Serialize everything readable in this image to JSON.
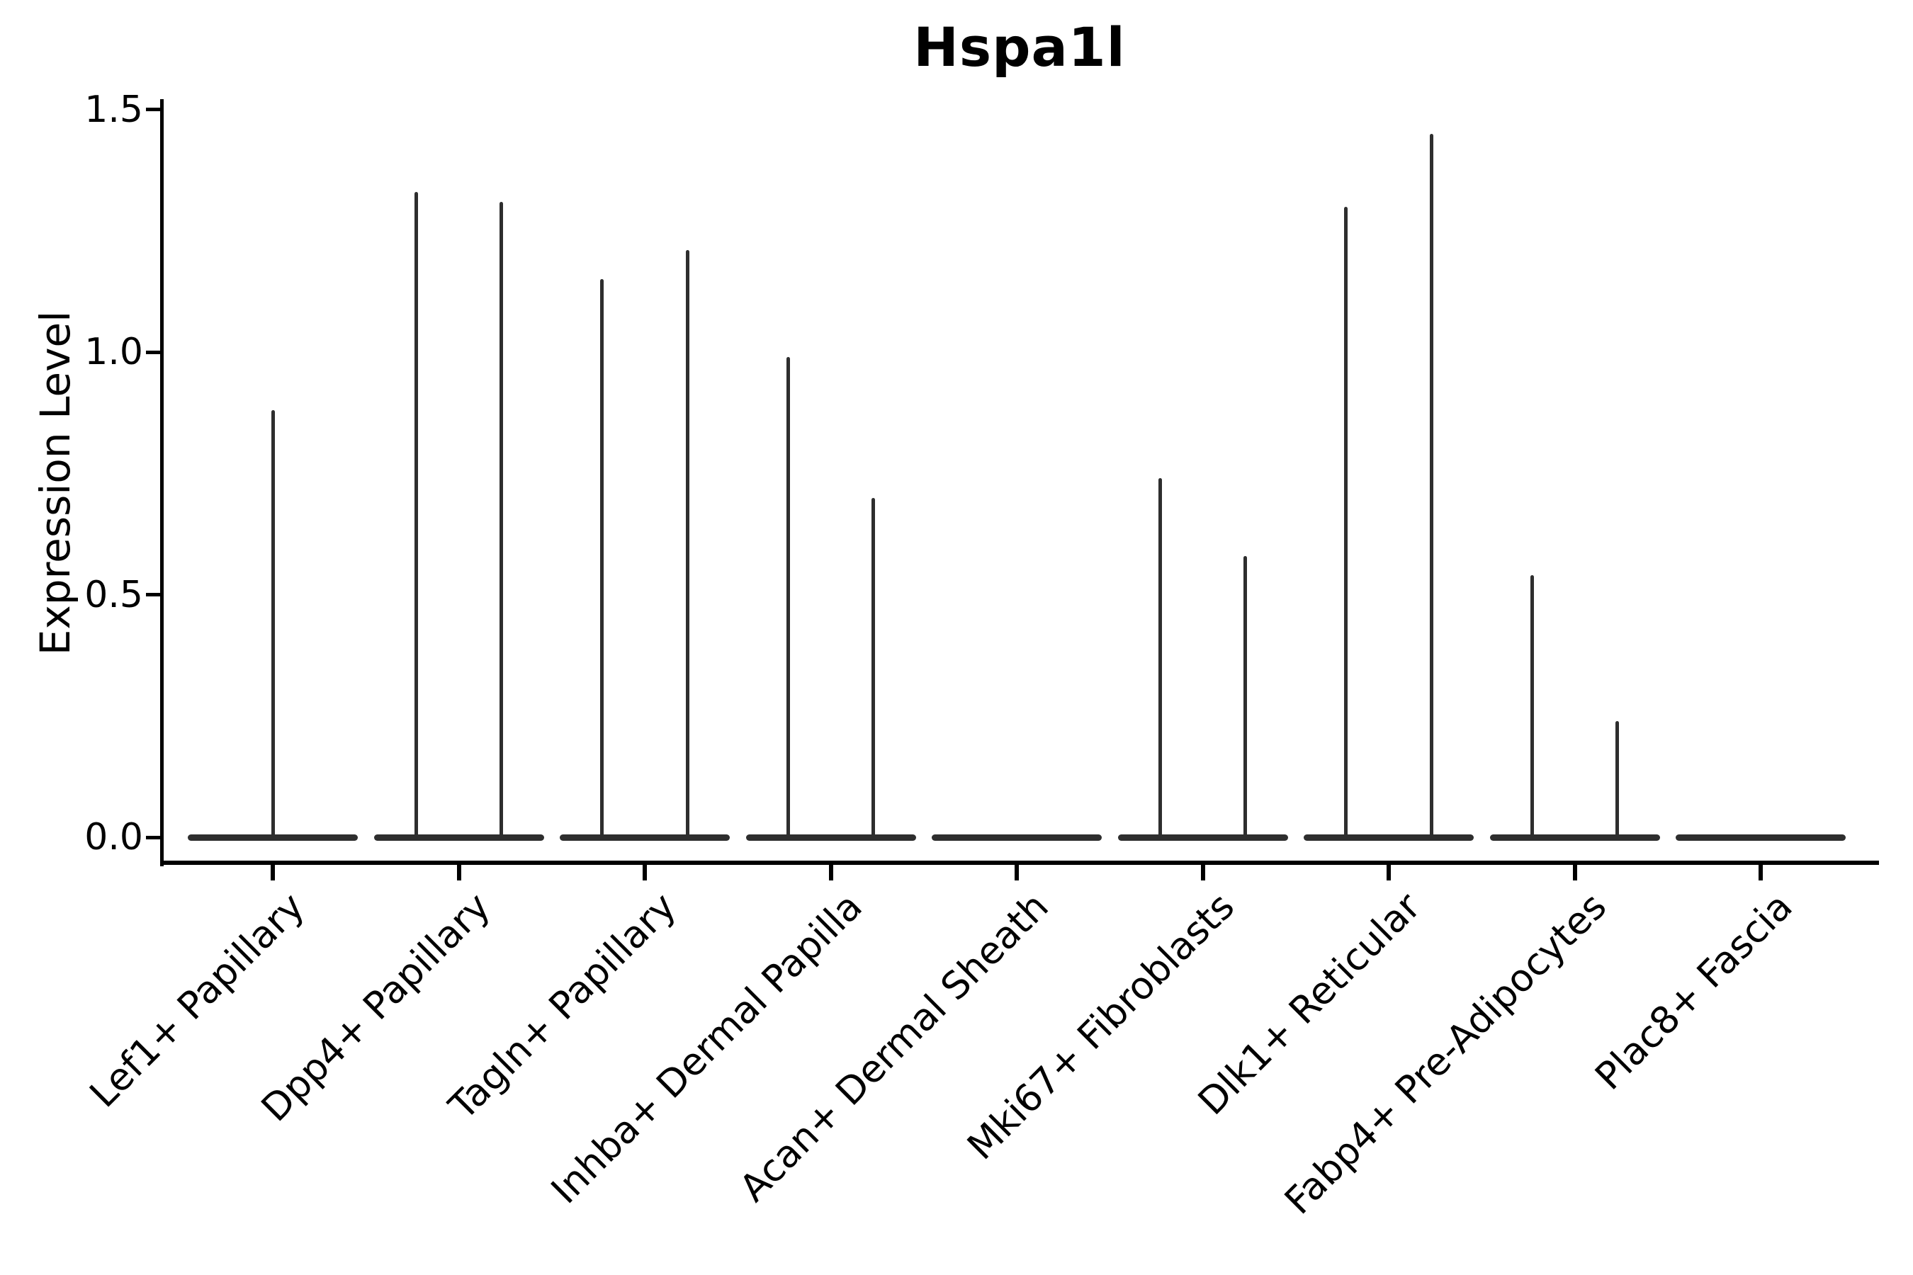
{
  "title": "Hspa1l",
  "y_axis": {
    "label": "Expression Level",
    "ticks": [
      {
        "label": "0.0",
        "value": 0.0
      },
      {
        "label": "0.5",
        "value": 0.5
      },
      {
        "label": "1.0",
        "value": 1.0
      },
      {
        "label": "1.5",
        "value": 1.5
      }
    ]
  },
  "chart_data": {
    "type": "violin",
    "title": "Hspa1l",
    "xlabel": "",
    "ylabel": "Expression Level",
    "ylim": [
      0,
      1.5
    ],
    "grid": false,
    "legend": false,
    "baseline_value": 0.0,
    "categories": [
      "Lef1+ Papillary",
      "Dpp4+ Papillary",
      "Tagln+ Papillary",
      "Inhba+ Dermal Papilla",
      "Acan+ Dermal Sheath",
      "Mki67+ Fibroblasts",
      "Dlk1+ Reticular",
      "Fabp4+ Pre-Adipocytes",
      "Plac8+ Fascia"
    ],
    "series": [
      {
        "category": "Lef1+ Papillary",
        "spikes": [
          {
            "offset": 0.0,
            "max": 0.88
          }
        ]
      },
      {
        "category": "Dpp4+ Papillary",
        "spikes": [
          {
            "offset": -0.23,
            "max": 1.33
          },
          {
            "offset": 0.23,
            "max": 1.31
          }
        ]
      },
      {
        "category": "Tagln+ Papillary",
        "spikes": [
          {
            "offset": -0.23,
            "max": 1.15
          },
          {
            "offset": 0.23,
            "max": 1.21
          }
        ]
      },
      {
        "category": "Inhba+ Dermal Papilla",
        "spikes": [
          {
            "offset": -0.23,
            "max": 0.99
          },
          {
            "offset": 0.23,
            "max": 0.7
          }
        ]
      },
      {
        "category": "Acan+ Dermal Sheath",
        "spikes": []
      },
      {
        "category": "Mki67+ Fibroblasts",
        "spikes": [
          {
            "offset": -0.23,
            "max": 0.74
          },
          {
            "offset": 0.23,
            "max": 0.58
          }
        ]
      },
      {
        "category": "Dlk1+ Reticular",
        "spikes": [
          {
            "offset": -0.23,
            "max": 1.3
          },
          {
            "offset": 0.23,
            "max": 1.45
          }
        ]
      },
      {
        "category": "Fabp4+ Pre-Adipocytes",
        "spikes": [
          {
            "offset": -0.23,
            "max": 0.54
          },
          {
            "offset": 0.23,
            "max": 0.24
          }
        ]
      },
      {
        "category": "Plac8+ Fascia",
        "spikes": []
      }
    ]
  },
  "colors": {
    "violin": "#2e2e2e",
    "axis": "#000000",
    "text": "#000000",
    "background": "#ffffff"
  }
}
